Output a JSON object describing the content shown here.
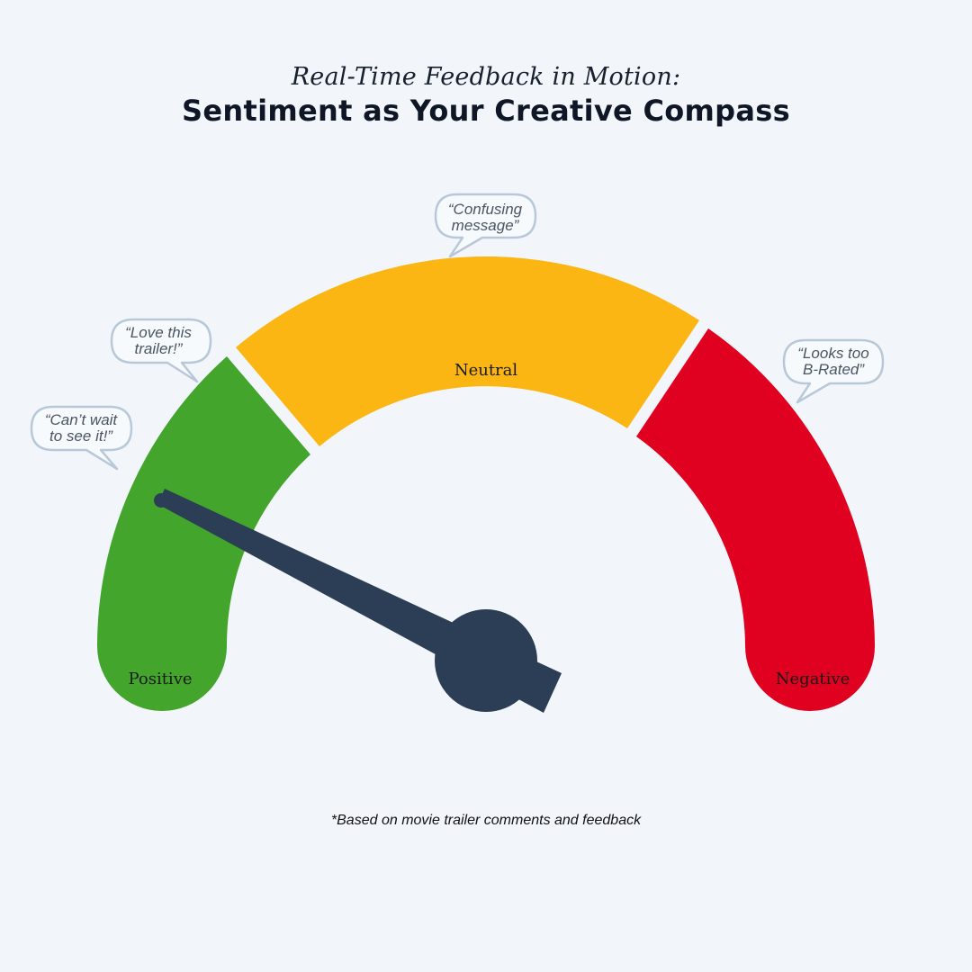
{
  "header": {
    "subtitle": "Real-Time Feedback in Motion:",
    "title": "Sentiment as Your Creative Compass"
  },
  "gauge": {
    "segments": [
      {
        "id": "positive",
        "label": "Positive",
        "color": "#43a52c"
      },
      {
        "id": "neutral",
        "label": "Neutral",
        "color": "#fbb614"
      },
      {
        "id": "negative",
        "label": "Negative",
        "color": "#e0001f"
      }
    ],
    "needle_color": "#2c3e55",
    "needle_direction": "pointing into the Positive segment"
  },
  "bubbles": [
    {
      "id": "cant-wait",
      "lines": [
        "“Can’t wait",
        "to see it!”"
      ]
    },
    {
      "id": "love-trailer",
      "lines": [
        "“Love this",
        "trailer!”"
      ]
    },
    {
      "id": "confusing",
      "lines": [
        "“Confusing",
        "message”"
      ]
    },
    {
      "id": "b-rated",
      "lines": [
        "“Looks too",
        "B-Rated”"
      ]
    }
  ],
  "footnote": "*Based on movie trailer comments and feedback"
}
